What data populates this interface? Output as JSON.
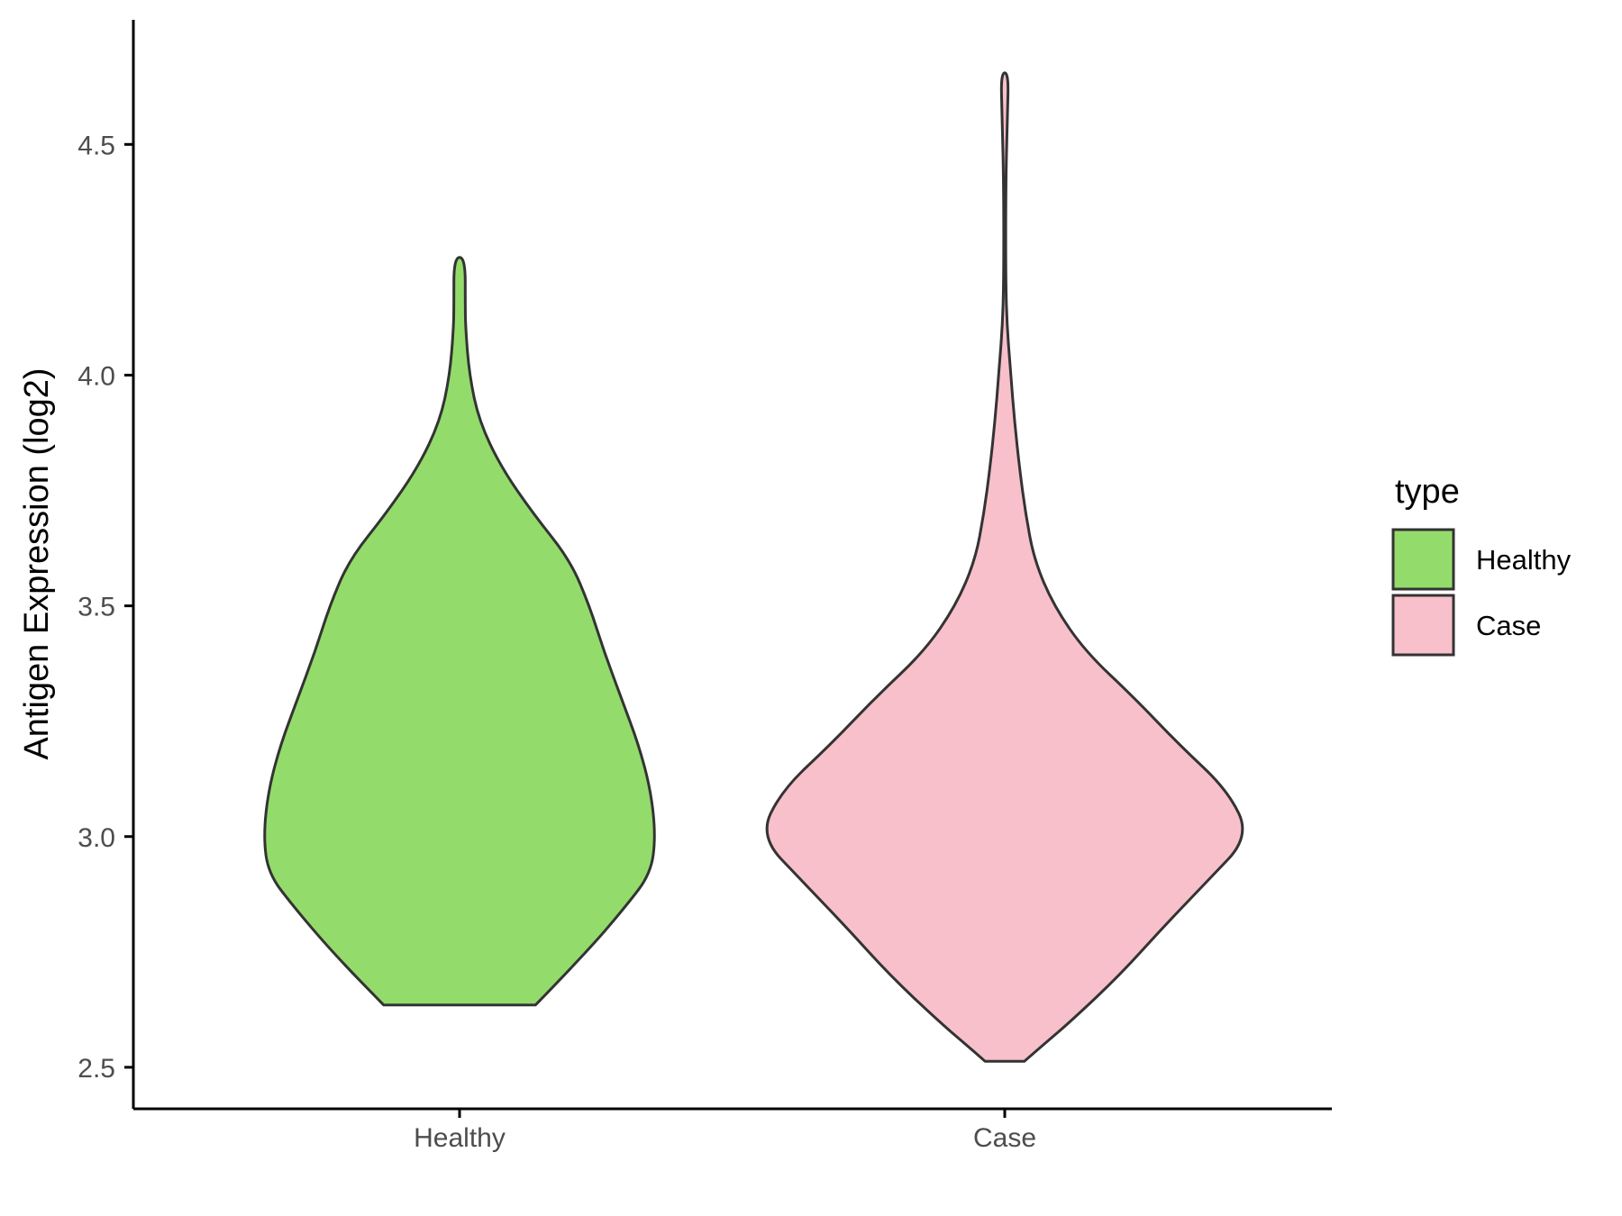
{
  "chart_data": {
    "type": "violin",
    "ylabel": "Antigen Expression (log2)",
    "xlabel": "",
    "categories": [
      "Healthy",
      "Case"
    ],
    "ylim": [
      2.41,
      4.77
    ],
    "yticks": [
      "2.5",
      "3.0",
      "3.5",
      "4.0",
      "4.5"
    ],
    "legend": {
      "title": "type",
      "placement": "right",
      "entries": [
        "Healthy",
        "Case"
      ]
    },
    "series": [
      {
        "category": "Healthy",
        "color": "#93dc6b",
        "min": 2.635,
        "max": 4.255,
        "density_profile": [
          [
            2.635,
            0.31
          ],
          [
            2.75,
            0.52
          ],
          [
            2.85,
            0.68
          ],
          [
            2.92,
            0.78
          ],
          [
            3.0,
            0.8
          ],
          [
            3.1,
            0.78
          ],
          [
            3.2,
            0.73
          ],
          [
            3.3,
            0.66
          ],
          [
            3.4,
            0.59
          ],
          [
            3.5,
            0.53
          ],
          [
            3.6,
            0.45
          ],
          [
            3.7,
            0.3
          ],
          [
            3.8,
            0.17
          ],
          [
            3.9,
            0.08
          ],
          [
            4.0,
            0.04
          ],
          [
            4.1,
            0.025
          ],
          [
            4.15,
            0.023
          ],
          [
            4.255,
            0.023
          ]
        ]
      },
      {
        "category": "Case",
        "color": "#f8c0cb",
        "min": 2.513,
        "max": 4.655,
        "density_profile": [
          [
            2.513,
            0.08
          ],
          [
            2.55,
            0.16
          ],
          [
            2.6,
            0.27
          ],
          [
            2.7,
            0.47
          ],
          [
            2.8,
            0.64
          ],
          [
            2.9,
            0.82
          ],
          [
            3.0,
            1.0
          ],
          [
            3.1,
            0.91
          ],
          [
            3.2,
            0.71
          ],
          [
            3.3,
            0.53
          ],
          [
            3.4,
            0.33
          ],
          [
            3.5,
            0.2
          ],
          [
            3.6,
            0.12
          ],
          [
            3.7,
            0.085
          ],
          [
            3.8,
            0.06
          ],
          [
            3.9,
            0.04
          ],
          [
            4.0,
            0.025
          ],
          [
            4.1,
            0.01
          ],
          [
            4.2,
            0.004
          ],
          [
            4.4,
            0.004
          ],
          [
            4.55,
            0.01
          ],
          [
            4.655,
            0.016
          ]
        ]
      }
    ],
    "fill_colors": {
      "Healthy": "#93dc6b",
      "Case": "#f8c0cb"
    },
    "outline_color": "#333333"
  }
}
